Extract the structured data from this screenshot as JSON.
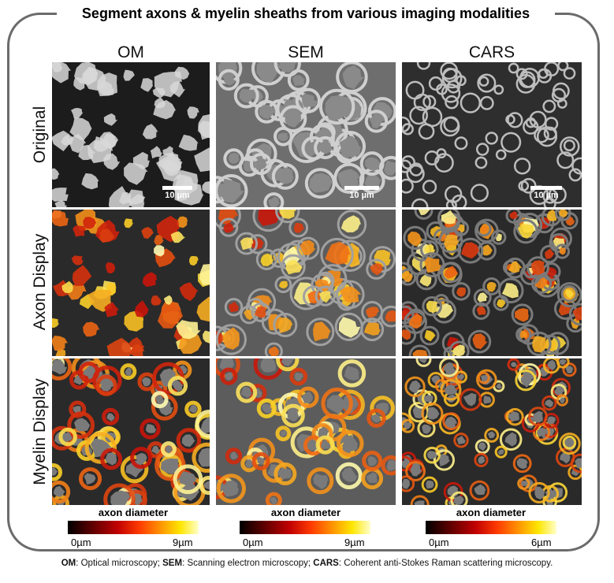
{
  "title": "Segment axons & myelin sheaths from various imaging modalities",
  "columns": [
    "OM",
    "SEM",
    "CARS"
  ],
  "rows": [
    "Original",
    "Axon Display",
    "Myelin Display"
  ],
  "scale_label": "10 µm",
  "legends": [
    {
      "title": "axon diameter",
      "min": "0µm",
      "max": "9µm"
    },
    {
      "title": "axon diameter",
      "min": "0µm",
      "max": "9µm"
    },
    {
      "title": "axon diameter",
      "min": "0µm",
      "max": "6µm"
    }
  ],
  "caption": {
    "om_abbr": "OM",
    "om_text": ": Optical microscopy; ",
    "sem_abbr": "SEM",
    "sem_text": ": Scanning electron microscopy; ",
    "cars_abbr": "CARS",
    "cars_text": ": Coherent anti-Stokes Raman scattering microscopy."
  },
  "colors": {
    "frame": "#6b6b6b",
    "colormap_low": "#000000",
    "colormap_high": "#ffffcc"
  }
}
